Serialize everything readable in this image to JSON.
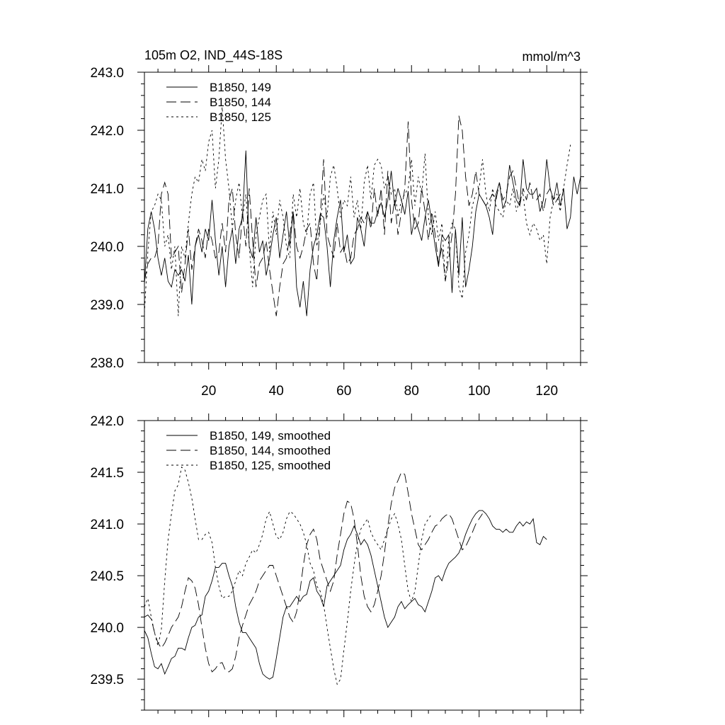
{
  "chart_data": [
    {
      "type": "line",
      "title": "105m O2, IND_44S-18S",
      "units": "mmol/m^3",
      "xlim": [
        1,
        130
      ],
      "ylim": [
        238.0,
        243.0
      ],
      "xticks": [
        20,
        40,
        60,
        80,
        100,
        120
      ],
      "xtick_labels": [
        "20",
        "40",
        "60",
        "80",
        "100",
        "120"
      ],
      "yticks": [
        238.0,
        239.0,
        240.0,
        241.0,
        242.0,
        243.0
      ],
      "ytick_labels": [
        "238.0",
        "239.0",
        "240.0",
        "241.0",
        "242.0",
        "243.0"
      ],
      "legend_position": "top-left",
      "series": [
        {
          "name": "B1850, 149",
          "style": "solid",
          "values": [
            239.35,
            240.3,
            240.6,
            240.3,
            239.8,
            239.5,
            239.8,
            239.4,
            239.3,
            239.6,
            239.5,
            239.6,
            239.4,
            239.85,
            239.0,
            240.0,
            240.2,
            239.9,
            240.3,
            240.1,
            240.8,
            240.1,
            239.5,
            240.0,
            239.3,
            240.0,
            240.3,
            239.7,
            240.3,
            240.5,
            241.65,
            240.0,
            239.8,
            240.5,
            239.9,
            240.1,
            239.5,
            239.8,
            240.2,
            240.5,
            239.8,
            240.2,
            240.6,
            240.0,
            240.6,
            239.3,
            238.95,
            239.4,
            238.8,
            239.6,
            240.0,
            240.2,
            240.55,
            240.5,
            240.0,
            239.3,
            240.1,
            240.5,
            240.8,
            239.9,
            240.2,
            239.7,
            239.8,
            240.5,
            240.3,
            240.0,
            240.6,
            240.4,
            240.4,
            240.6,
            240.75,
            240.5,
            240.8,
            241.3,
            240.7,
            241.0,
            240.8,
            240.55,
            240.95,
            240.2,
            240.5,
            240.3,
            240.1,
            240.5,
            240.8,
            240.4,
            240.0,
            239.65,
            240.2,
            240.1,
            240.2,
            239.2,
            240.3,
            239.5,
            240.5,
            239.3,
            239.6,
            240.0,
            240.6,
            240.9,
            240.8,
            240.7,
            240.5,
            240.2,
            240.9,
            241.1,
            240.65,
            240.8,
            241.4,
            241.1,
            240.8,
            240.7,
            241.5,
            241.0,
            240.9,
            240.9,
            241.0,
            240.6,
            240.8,
            241.5,
            241.0,
            240.8,
            241.1,
            240.7,
            241.0,
            240.3,
            240.5,
            241.2,
            240.9,
            241.2
          ]
        },
        {
          "name": "B1850, 144",
          "style": "dash",
          "values": [
            239.4,
            239.7,
            239.8,
            239.8,
            240.0,
            240.9,
            241.1,
            240.9,
            239.8,
            239.9,
            240.0,
            239.2,
            239.7,
            240.3,
            239.6,
            240.0,
            240.3,
            240.1,
            239.8,
            240.3,
            240.1,
            239.8,
            239.9,
            240.4,
            239.9,
            240.8,
            241.0,
            240.2,
            239.8,
            240.6,
            240.0,
            241.0,
            240.1,
            239.3,
            239.7,
            239.8,
            240.1,
            239.6,
            239.2,
            238.8,
            239.3,
            239.7,
            239.8,
            240.2,
            240.6,
            240.0,
            239.8,
            240.0,
            240.3,
            240.4,
            239.7,
            239.4,
            240.5,
            241.5,
            240.2,
            240.0,
            239.8,
            240.4,
            239.9,
            240.0,
            239.7,
            239.8,
            240.2,
            240.3,
            240.5,
            240.4,
            240.6,
            240.3,
            241.0,
            240.5,
            241.0,
            240.2,
            241.3,
            240.4,
            240.8,
            240.2,
            240.6,
            241.0,
            242.15,
            240.8,
            240.3,
            240.4,
            241.0,
            240.6,
            240.1,
            240.6,
            240.2,
            239.7,
            240.0,
            239.4,
            239.8,
            240.2,
            240.9,
            242.25,
            242.0,
            241.2,
            240.7,
            240.9,
            241.3,
            240.9,
            240.8,
            240.7,
            240.8,
            240.9,
            240.8,
            241.1,
            240.8,
            240.9,
            241.2,
            241.3,
            241.0,
            240.7,
            241.0,
            240.8,
            241.1,
            240.8,
            240.8,
            240.9,
            240.6,
            240.9,
            241.0,
            240.7,
            240.8,
            240.9,
            241.0
          ]
        },
        {
          "name": "B1850, 125",
          "style": "dot",
          "values": [
            238.85,
            239.9,
            240.6,
            240.7,
            240.9,
            240.8,
            240.0,
            240.2,
            239.6,
            240.0,
            238.8,
            240.0,
            239.8,
            240.4,
            240.9,
            241.2,
            241.1,
            241.5,
            241.3,
            241.8,
            242.0,
            241.0,
            241.5,
            242.4,
            241.5,
            241.0,
            240.3,
            240.8,
            241.1,
            240.5,
            240.9,
            240.0,
            239.3,
            240.2,
            240.5,
            240.8,
            240.9,
            239.9,
            240.6,
            240.2,
            240.8,
            240.5,
            240.0,
            239.8,
            240.9,
            240.5,
            241.0,
            240.4,
            240.2,
            240.9,
            241.1,
            240.0,
            240.4,
            240.9,
            240.5,
            241.2,
            241.4,
            241.0,
            240.5,
            240.8,
            240.7,
            241.2,
            240.5,
            240.8,
            240.3,
            241.1,
            241.4,
            240.8,
            241.4,
            241.5,
            241.4,
            241.0,
            241.2,
            240.9,
            241.0,
            240.5,
            240.8,
            240.9,
            241.0,
            241.5,
            240.7,
            241.2,
            240.9,
            241.6,
            240.5,
            240.2,
            240.6,
            240.1,
            240.4,
            239.4,
            240.1,
            240.4,
            240.3,
            239.3,
            239.1,
            239.9,
            240.2,
            240.7,
            240.9,
            241.0,
            241.5,
            240.9,
            240.6,
            241.0,
            240.7,
            240.6,
            240.5,
            240.8,
            240.7,
            241.0,
            240.6,
            240.8,
            240.9,
            240.4,
            240.2,
            240.4,
            240.3,
            240.1,
            240.2,
            239.7,
            240.5,
            240.8,
            240.9,
            240.6,
            241.0,
            241.4,
            241.75
          ]
        }
      ]
    },
    {
      "type": "line",
      "xlim": [
        1,
        130
      ],
      "ylim": [
        239.2,
        242.0
      ],
      "xticks": [
        20,
        40,
        60,
        80,
        100,
        120
      ],
      "yticks": [
        239.5,
        240.0,
        240.5,
        241.0,
        241.5,
        242.0
      ],
      "ytick_labels": [
        "239.5",
        "240.0",
        "240.5",
        "241.0",
        "241.5",
        "242.0"
      ],
      "legend_position": "top-left",
      "series": [
        {
          "name": "B1850, 149, smoothed",
          "style": "solid",
          "values": [
            239.97,
            239.9,
            239.75,
            239.62,
            239.6,
            239.65,
            239.55,
            239.62,
            239.7,
            239.72,
            239.8,
            239.8,
            239.78,
            239.9,
            240.0,
            240.02,
            240.1,
            240.12,
            240.3,
            240.35,
            240.45,
            240.58,
            240.58,
            240.62,
            240.62,
            240.5,
            240.4,
            240.2,
            240.05,
            239.95,
            239.95,
            239.9,
            239.85,
            239.8,
            239.65,
            239.55,
            239.52,
            239.5,
            239.52,
            239.7,
            239.9,
            240.1,
            240.2,
            240.2,
            240.25,
            240.3,
            240.25,
            240.3,
            240.32,
            240.45,
            240.48,
            240.35,
            240.3,
            240.2,
            240.4,
            240.45,
            240.5,
            240.55,
            240.6,
            240.75,
            240.85,
            240.9,
            240.98,
            240.9,
            240.8,
            240.85,
            240.8,
            240.7,
            240.55,
            240.4,
            240.25,
            240.1,
            240.0,
            240.05,
            240.1,
            240.2,
            240.25,
            240.18,
            240.22,
            240.25,
            240.28,
            240.22,
            240.2,
            240.15,
            240.25,
            240.35,
            240.48,
            240.5,
            240.45,
            240.55,
            240.62,
            240.65,
            240.68,
            240.72,
            240.8,
            240.9,
            240.98,
            241.05,
            241.1,
            241.13,
            241.13,
            241.1,
            241.05,
            240.98,
            240.95,
            240.95,
            240.92,
            240.95,
            240.92,
            240.92,
            240.98,
            241.02,
            240.98,
            241.02,
            241.0,
            241.05,
            240.82,
            240.8,
            240.88,
            240.85
          ]
        },
        {
          "name": "B1850, 144, smoothed",
          "style": "dash",
          "values": [
            240.1,
            240.12,
            240.08,
            239.95,
            239.85,
            239.8,
            239.85,
            239.92,
            240.0,
            240.05,
            240.1,
            240.2,
            240.35,
            240.48,
            240.45,
            240.38,
            240.22,
            240.0,
            239.8,
            239.65,
            239.57,
            239.6,
            239.65,
            239.66,
            239.58,
            239.57,
            239.6,
            239.72,
            239.9,
            240.02,
            240.12,
            240.22,
            240.28,
            240.35,
            240.45,
            240.5,
            240.55,
            240.6,
            240.6,
            240.5,
            240.4,
            240.3,
            240.2,
            240.1,
            240.05,
            240.15,
            240.35,
            240.6,
            240.8,
            240.9,
            240.95,
            240.85,
            240.65,
            240.55,
            240.45,
            240.35,
            240.45,
            240.7,
            240.9,
            241.1,
            241.22,
            241.2,
            241.05,
            240.8,
            240.5,
            240.3,
            240.2,
            240.15,
            240.22,
            240.35,
            240.5,
            240.72,
            240.98,
            241.2,
            241.35,
            241.42,
            241.5,
            241.48,
            241.3,
            241.1,
            240.95,
            240.8,
            240.75,
            240.8,
            240.85,
            240.92,
            240.98,
            241.0,
            241.05,
            241.08,
            241.1,
            241.05,
            240.95,
            240.85,
            240.75,
            240.78,
            240.85,
            240.92,
            241.0,
            241.05,
            241.1
          ]
        },
        {
          "name": "B1850, 125, smoothed",
          "style": "dot",
          "values": [
            240.2,
            240.28,
            240.1,
            239.95,
            239.82,
            239.98,
            240.45,
            240.85,
            241.1,
            241.32,
            241.38,
            241.55,
            241.52,
            241.4,
            241.25,
            241.05,
            240.85,
            240.85,
            240.9,
            240.92,
            240.82,
            240.58,
            240.4,
            240.28,
            240.3,
            240.3,
            240.35,
            240.45,
            240.55,
            240.5,
            240.62,
            240.68,
            240.75,
            240.72,
            240.8,
            240.9,
            241.05,
            241.12,
            241.0,
            240.88,
            240.85,
            240.92,
            241.05,
            241.12,
            241.1,
            241.05,
            241.0,
            240.92,
            240.8,
            240.62,
            240.55,
            240.4,
            240.35,
            240.22,
            240.0,
            239.8,
            239.6,
            239.45,
            239.5,
            239.78,
            240.05,
            240.35,
            240.6,
            240.82,
            240.95,
            241.0,
            241.05,
            240.92,
            240.85,
            240.8,
            240.75,
            240.85,
            240.95,
            241.05,
            241.1,
            241.0,
            240.85,
            240.6,
            240.35,
            240.25,
            240.35,
            240.6,
            240.85,
            241.0,
            241.05,
            241.1
          ]
        }
      ]
    }
  ]
}
